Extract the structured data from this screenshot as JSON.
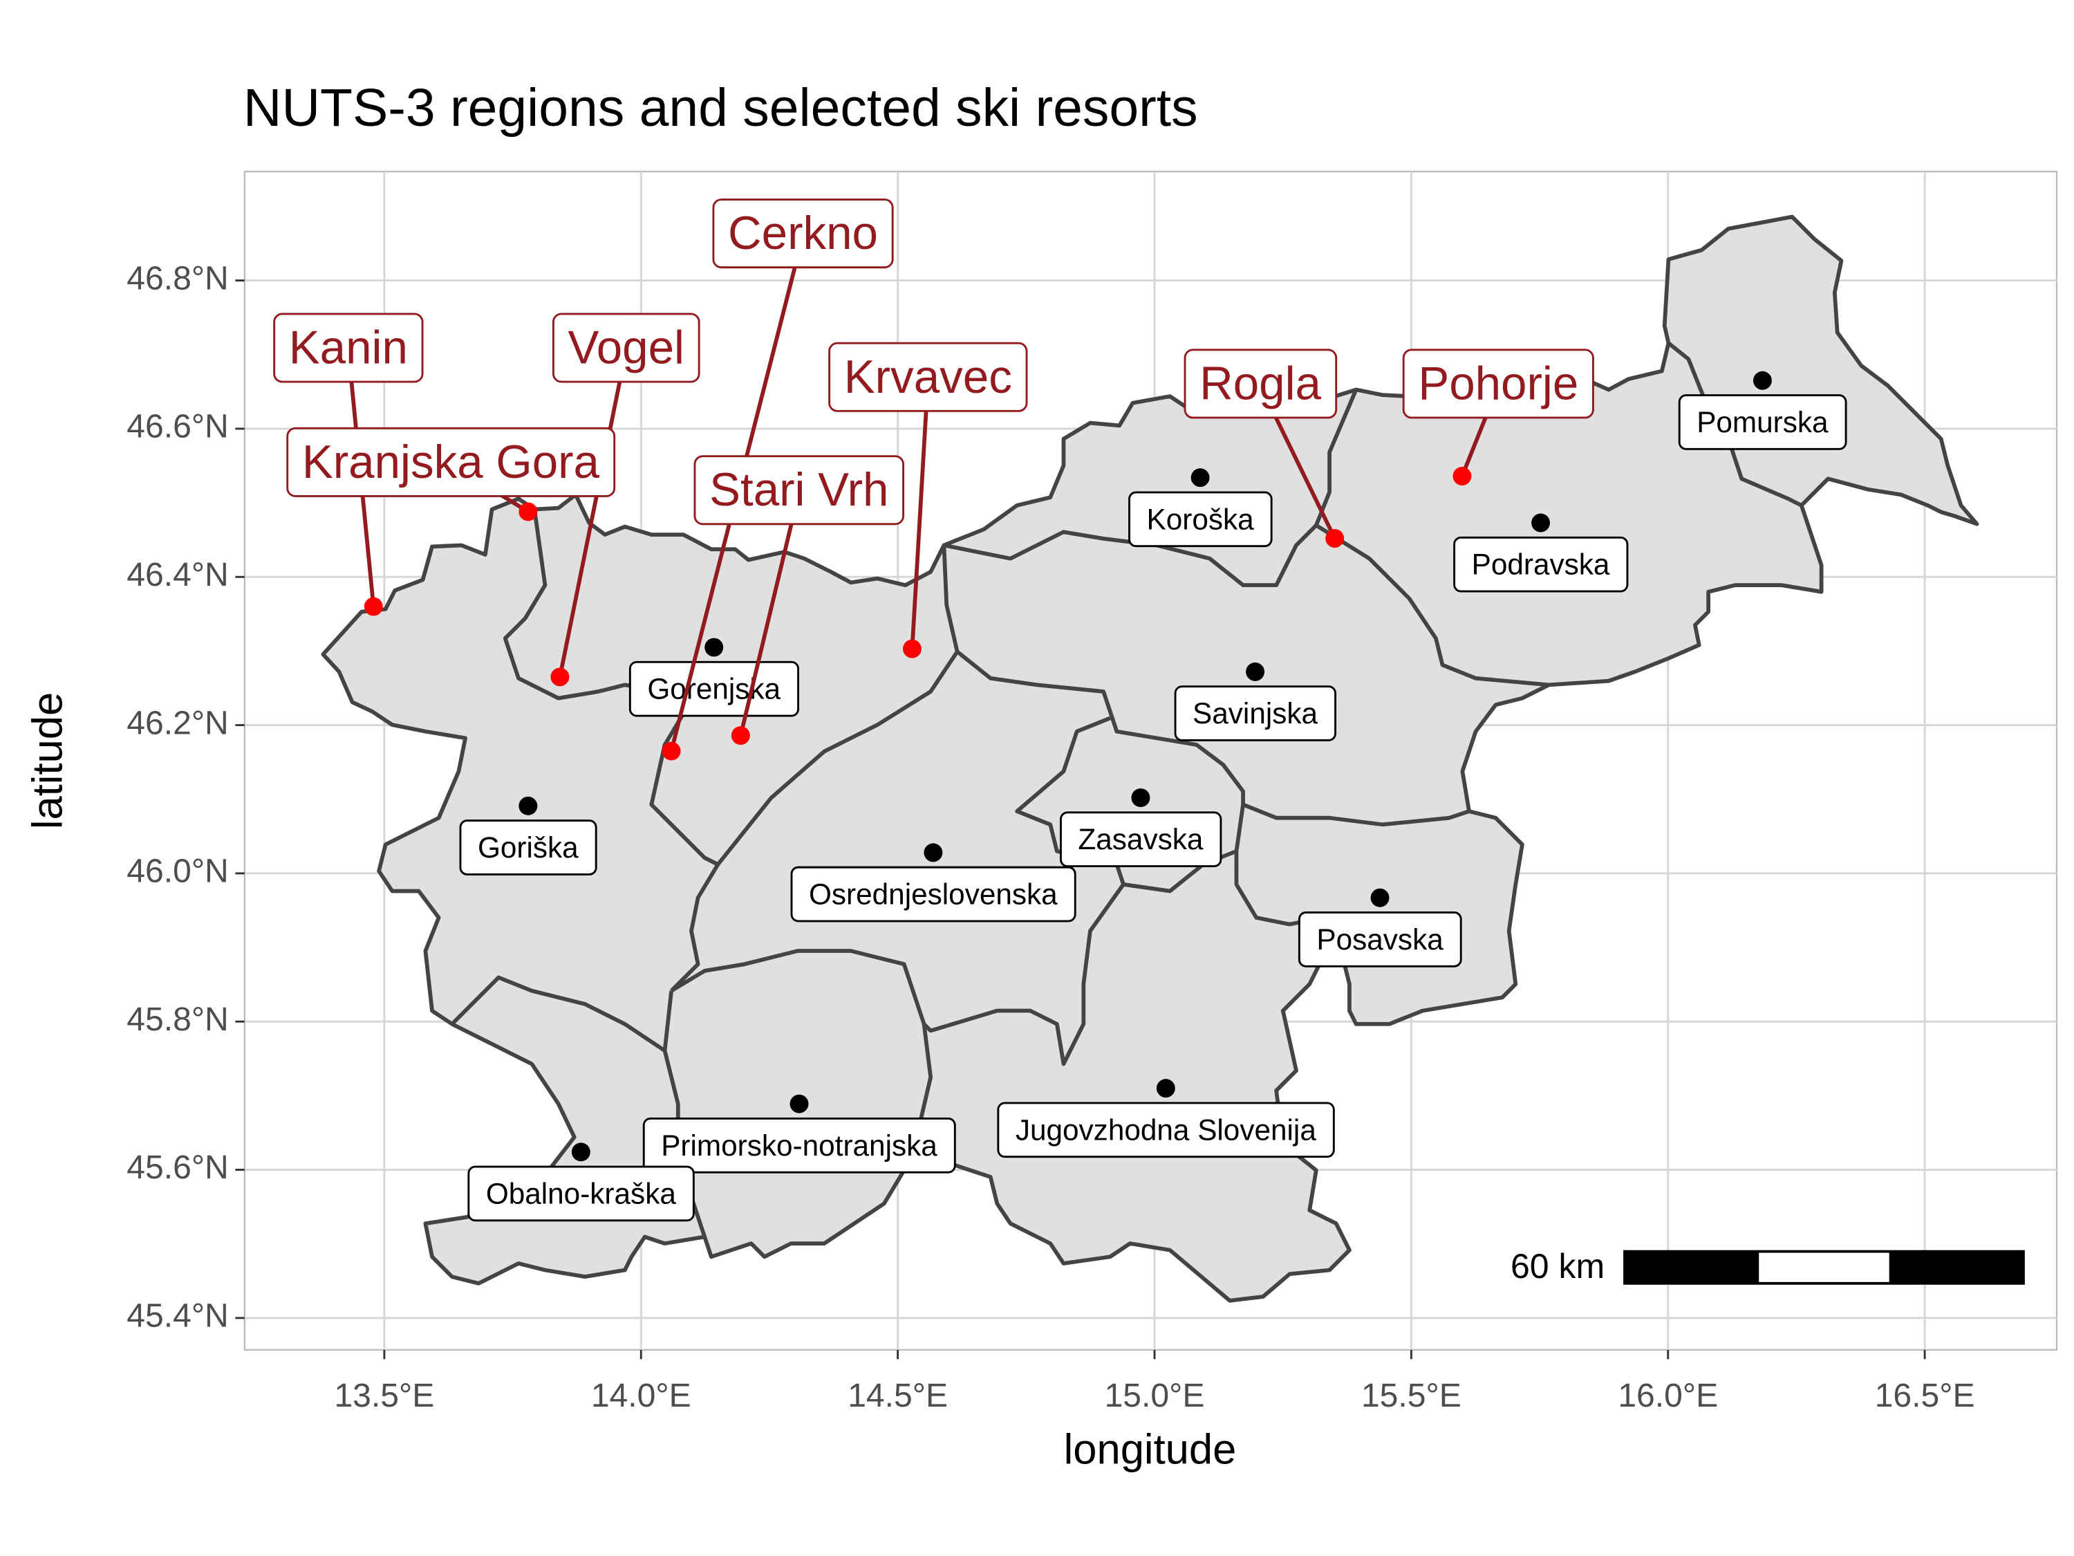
{
  "chart_data": {
    "type": "map",
    "title": "NUTS-3 regions and selected ski resorts",
    "x_label": "longitude",
    "y_label": "latitude",
    "xlim": [
      13.228,
      16.757
    ],
    "ylim": [
      45.357,
      46.947
    ],
    "xticks": [
      {
        "value": 13.5,
        "label": "13.5°E"
      },
      {
        "value": 14.0,
        "label": "14.0°E"
      },
      {
        "value": 14.5,
        "label": "14.5°E"
      },
      {
        "value": 15.0,
        "label": "15.0°E"
      },
      {
        "value": 15.5,
        "label": "15.5°E"
      },
      {
        "value": 16.0,
        "label": "16.0°E"
      },
      {
        "value": 16.5,
        "label": "16.5°E"
      }
    ],
    "yticks": [
      {
        "value": 45.4,
        "label": "45.4°N"
      },
      {
        "value": 45.6,
        "label": "45.6°N"
      },
      {
        "value": 45.8,
        "label": "45.8°N"
      },
      {
        "value": 46.0,
        "label": "46.0°N"
      },
      {
        "value": 46.2,
        "label": "46.2°N"
      },
      {
        "value": 46.4,
        "label": "46.4°N"
      },
      {
        "value": 46.6,
        "label": "46.6°N"
      },
      {
        "value": 46.8,
        "label": "46.8°N"
      }
    ],
    "grid": true,
    "region_fill": "#e0e0e0",
    "regions": [
      {
        "name": "Pomurska",
        "lon": 16.184,
        "lat": 46.665
      },
      {
        "name": "Koroška",
        "lon": 15.089,
        "lat": 46.534
      },
      {
        "name": "Podravska",
        "lon": 15.752,
        "lat": 46.473
      },
      {
        "name": "Gorenjska",
        "lon": 14.142,
        "lat": 46.305
      },
      {
        "name": "Savinjska",
        "lon": 15.196,
        "lat": 46.272
      },
      {
        "name": "Goriška",
        "lon": 13.78,
        "lat": 46.091
      },
      {
        "name": "Zasavska",
        "lon": 14.973,
        "lat": 46.102
      },
      {
        "name": "Osrednjeslovenska",
        "lon": 14.569,
        "lat": 46.028
      },
      {
        "name": "Posavska",
        "lon": 15.439,
        "lat": 45.967
      },
      {
        "name": "Primorsko-notranjska",
        "lon": 14.308,
        "lat": 45.689
      },
      {
        "name": "Jugovzhodna Slovenija",
        "lon": 15.022,
        "lat": 45.71
      },
      {
        "name": "Obalno-kraška",
        "lon": 13.883,
        "lat": 45.624
      }
    ],
    "resort_color": "#ff0000",
    "resort_label_color": "#931a1f",
    "ski_resorts": [
      {
        "name": "Kanin",
        "lon": 13.479,
        "lat": 46.36
      },
      {
        "name": "Kranjska Gora",
        "lon": 13.78,
        "lat": 46.488
      },
      {
        "name": "Vogel",
        "lon": 13.842,
        "lat": 46.265
      },
      {
        "name": "Cerkno",
        "lon": 14.059,
        "lat": 46.165
      },
      {
        "name": "Stari Vrh",
        "lon": 14.194,
        "lat": 46.186
      },
      {
        "name": "Krvavec",
        "lon": 14.528,
        "lat": 46.303
      },
      {
        "name": "Rogla",
        "lon": 15.351,
        "lat": 46.452
      },
      {
        "name": "Pohorje",
        "lon": 15.599,
        "lat": 46.536
      }
    ],
    "scale_bar": {
      "label": "60 km"
    }
  }
}
